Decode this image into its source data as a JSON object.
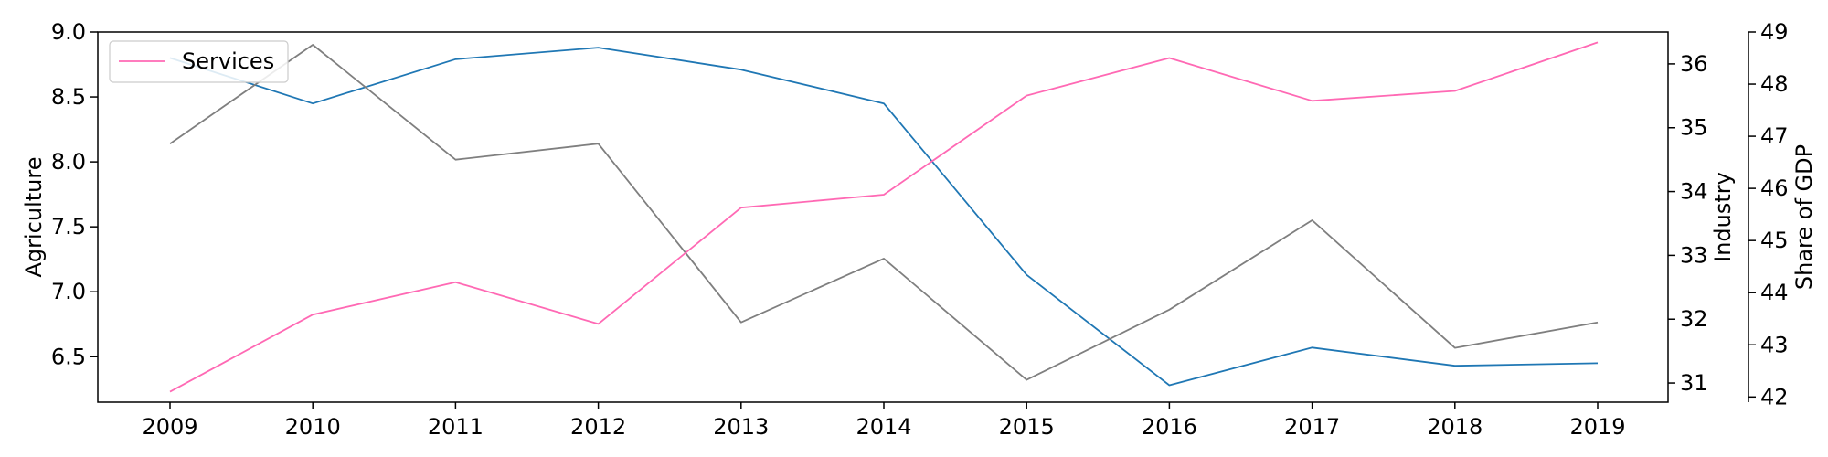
{
  "chart_data": {
    "type": "line",
    "x": [
      2009,
      2010,
      2011,
      2012,
      2013,
      2014,
      2015,
      2016,
      2017,
      2018,
      2019
    ],
    "xticks": [
      "2009",
      "2010",
      "2011",
      "2012",
      "2013",
      "2014",
      "2015",
      "2016",
      "2017",
      "2018",
      "2019"
    ],
    "axes": {
      "left": {
        "label": "Agriculture",
        "range": [
          6.15,
          9.0
        ],
        "ticks": [
          "6.5",
          "7.0",
          "7.5",
          "8.0",
          "8.5",
          "9.0"
        ]
      },
      "right1": {
        "label": "Industry",
        "range": [
          30.7,
          36.5
        ],
        "ticks": [
          "31",
          "32",
          "33",
          "34",
          "35",
          "36"
        ]
      },
      "right2": {
        "label": "Share of GDP",
        "range": [
          41.9,
          49.0
        ],
        "ticks": [
          "42",
          "43",
          "44",
          "45",
          "46",
          "47",
          "48",
          "49"
        ]
      }
    },
    "series": [
      {
        "axis": "left",
        "color": "#1f77b4",
        "values": [
          8.8,
          8.45,
          8.79,
          8.88,
          8.71,
          8.45,
          7.13,
          6.28,
          6.57,
          6.43,
          6.45
        ]
      },
      {
        "axis": "right1",
        "color": "#7f7f7f",
        "values": [
          34.75,
          36.3,
          34.5,
          34.75,
          31.95,
          32.95,
          31.05,
          32.15,
          33.55,
          31.55,
          31.95
        ]
      },
      {
        "name": "Services",
        "axis": "right2",
        "color": "#ff69b4",
        "values": [
          42.1,
          43.58,
          44.2,
          43.4,
          45.63,
          45.88,
          47.78,
          48.5,
          47.68,
          47.87,
          48.8
        ]
      }
    ],
    "legend": {
      "position": "top-left",
      "entries": [
        "Services"
      ]
    },
    "grid": false
  }
}
